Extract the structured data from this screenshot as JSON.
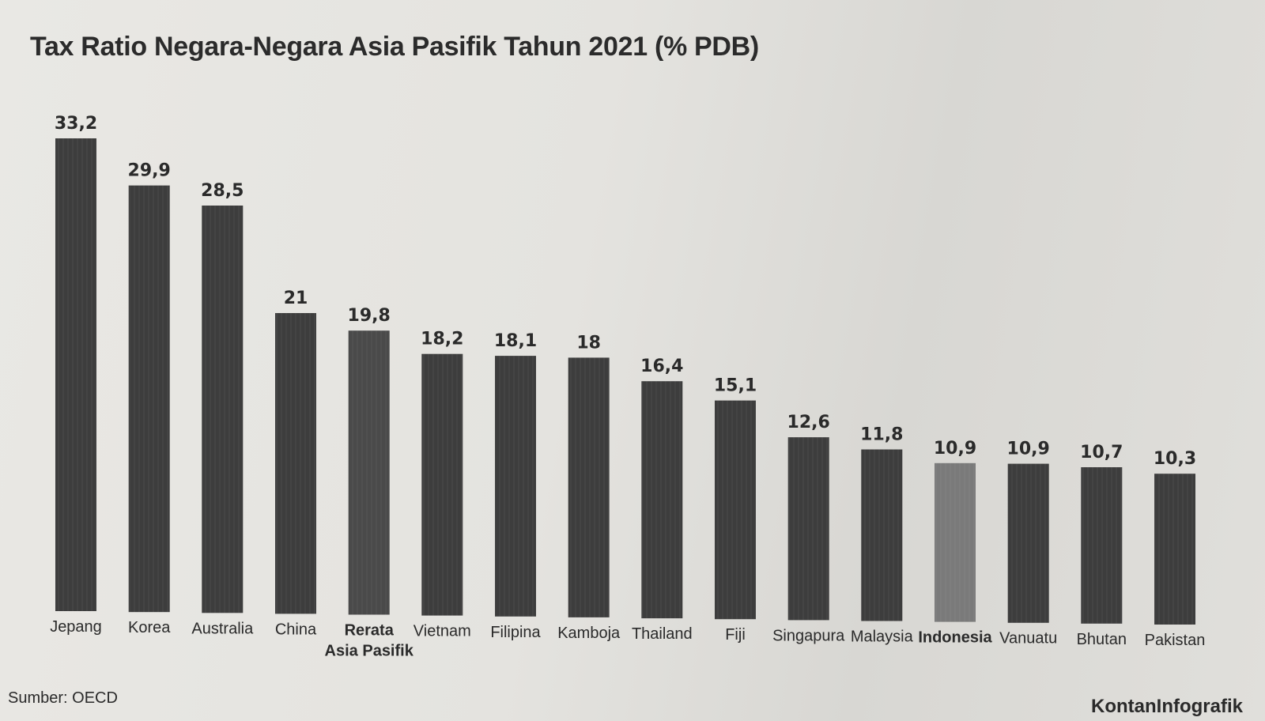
{
  "chart_data": {
    "type": "bar",
    "title": "Tax Ratio Negara-Negara Asia Pasifik Tahun 2021 (% PDB)",
    "categories": [
      "Jepang",
      "Korea",
      "Australia",
      "China",
      "Rerata Asia Pasifik",
      "Vietnam",
      "Filipina",
      "Kamboja",
      "Thailand",
      "Fiji",
      "Singapura",
      "Malaysia",
      "Indonesia",
      "Vanuatu",
      "Bhutan",
      "Pakistan"
    ],
    "category_lines": [
      [
        "Jepang"
      ],
      [
        "Korea"
      ],
      [
        "Australia"
      ],
      [
        "China"
      ],
      [
        "Rerata",
        "Asia Pasifik"
      ],
      [
        "Vietnam"
      ],
      [
        "Filipina"
      ],
      [
        "Kamboja"
      ],
      [
        "Thailand"
      ],
      [
        "Fiji"
      ],
      [
        "Singapura"
      ],
      [
        "Malaysia"
      ],
      [
        "Indonesia"
      ],
      [
        "Vanuatu"
      ],
      [
        "Bhutan"
      ],
      [
        "Pakistan"
      ]
    ],
    "values": [
      33.2,
      29.9,
      28.5,
      21,
      19.8,
      18.2,
      18.1,
      18,
      16.4,
      15.1,
      12.6,
      11.8,
      10.9,
      10.9,
      10.7,
      10.3
    ],
    "value_labels": [
      "33,2",
      "29,9",
      "28,5",
      "21",
      "19,8",
      "18,2",
      "18,1",
      "18",
      "16,4",
      "15,1",
      "12,6",
      "11,8",
      "10,9",
      "10,9",
      "10,7",
      "10,3"
    ],
    "bold_categories": [
      "Rerata Asia Pasifik",
      "Indonesia"
    ],
    "highlight_category": "Indonesia",
    "xlabel": "",
    "ylabel": "",
    "ylim": [
      0,
      33.2
    ],
    "grid": false,
    "legend": "none",
    "colors": {
      "bar": "#3d3d3d",
      "bar_average": "#4a4a4a",
      "bar_highlight": "#7a7a7a",
      "text": "#2a2a2a"
    }
  },
  "footer": {
    "source": "Sumber: OECD",
    "brand": "KontanInfografik"
  }
}
